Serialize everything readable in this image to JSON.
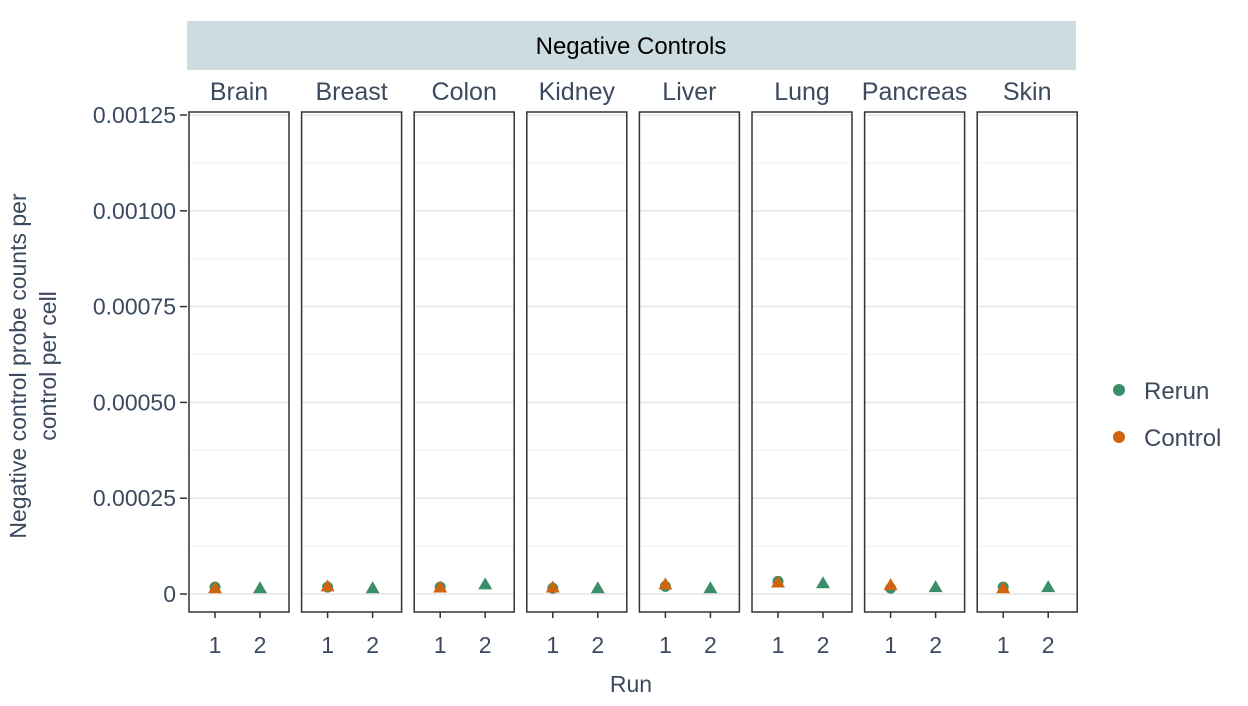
{
  "chart_data": {
    "type": "scatter",
    "title": "Negative Controls",
    "xlabel": "Run",
    "ylabel": "Negative control probe counts per control per cell",
    "ylabel_lines": [
      "Negative control probe counts per",
      "control per cell"
    ],
    "ylim": [
      0,
      0.00125
    ],
    "y_ticks": [
      0,
      0.00025,
      0.0005,
      0.00075,
      0.001,
      0.00125
    ],
    "y_tick_labels": [
      "0",
      "0.00025",
      "0.00050",
      "0.00075",
      "0.00100",
      "0.00125"
    ],
    "x_ticks": [
      "1",
      "2"
    ],
    "grid": true,
    "legend_position": "right",
    "facets": [
      {
        "label": "Brain",
        "control": {
          "run": 1,
          "value": 1.5e-05
        },
        "rerun": [
          {
            "run": 1,
            "value": 1.8e-05,
            "shape": "circle"
          },
          {
            "run": 2,
            "value": 1.5e-05,
            "shape": "triangle"
          }
        ]
      },
      {
        "label": "Breast",
        "control": {
          "run": 1,
          "value": 2e-05
        },
        "rerun": [
          {
            "run": 1,
            "value": 1.8e-05,
            "shape": "circle"
          },
          {
            "run": 2,
            "value": 1.5e-05,
            "shape": "triangle"
          }
        ]
      },
      {
        "label": "Colon",
        "control": {
          "run": 1,
          "value": 1.7e-05
        },
        "rerun": [
          {
            "run": 1,
            "value": 1.8e-05,
            "shape": "circle"
          },
          {
            "run": 2,
            "value": 2.5e-05,
            "shape": "triangle"
          }
        ]
      },
      {
        "label": "Kidney",
        "control": {
          "run": 1,
          "value": 1.7e-05
        },
        "rerun": [
          {
            "run": 1,
            "value": 1.5e-05,
            "shape": "circle"
          },
          {
            "run": 2,
            "value": 1.5e-05,
            "shape": "triangle"
          }
        ]
      },
      {
        "label": "Liver",
        "control": {
          "run": 1,
          "value": 2.5e-05
        },
        "rerun": [
          {
            "run": 1,
            "value": 2e-05,
            "shape": "circle"
          },
          {
            "run": 2,
            "value": 1.5e-05,
            "shape": "triangle"
          }
        ]
      },
      {
        "label": "Lung",
        "control": {
          "run": 1,
          "value": 3e-05
        },
        "rerun": [
          {
            "run": 1,
            "value": 3.3e-05,
            "shape": "circle"
          },
          {
            "run": 2,
            "value": 2.8e-05,
            "shape": "triangle"
          }
        ]
      },
      {
        "label": "Pancreas",
        "control": {
          "run": 1,
          "value": 2.3e-05
        },
        "rerun": [
          {
            "run": 1,
            "value": 1.5e-05,
            "shape": "circle"
          },
          {
            "run": 2,
            "value": 1.8e-05,
            "shape": "triangle"
          }
        ]
      },
      {
        "label": "Skin",
        "control": {
          "run": 1,
          "value": 1.5e-05
        },
        "rerun": [
          {
            "run": 1,
            "value": 1.8e-05,
            "shape": "circle"
          },
          {
            "run": 2,
            "value": 1.8e-05,
            "shape": "triangle"
          }
        ]
      }
    ],
    "legend": [
      {
        "name": "Rerun",
        "color": "#3a8f6a"
      },
      {
        "name": "Control",
        "color": "#d0640c"
      }
    ]
  },
  "colors": {
    "strip_background": "#ccdce0",
    "grid": "#e6e6e6",
    "panel_border": "#333333",
    "text": "#3c4a5e"
  }
}
